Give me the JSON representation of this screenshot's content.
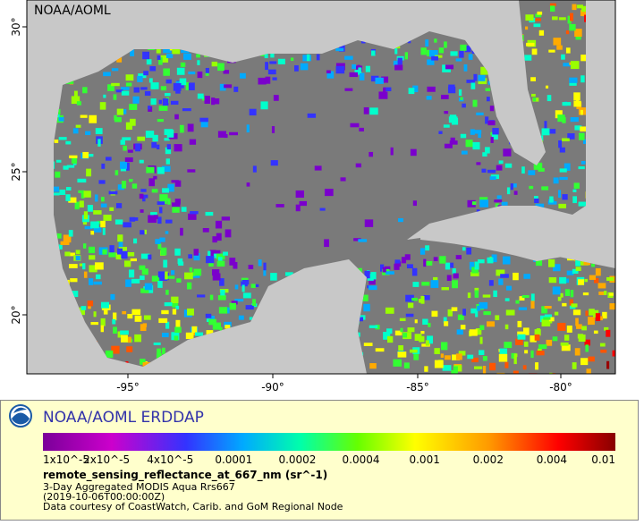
{
  "map": {
    "credit": "NOAA/AOML",
    "lon_labels": [
      "-95°",
      "-90°",
      "-85°",
      "-80°"
    ],
    "lat_labels": [
      "30°",
      "25°",
      "20°"
    ]
  },
  "legend": {
    "title": "NOAA/AOML ERDDAP",
    "colorbar_labels": [
      "1x10^-5",
      "2x10^-5",
      "4x10^-5",
      "0.0001",
      "0.0002",
      "0.0004",
      "0.001",
      "0.002",
      "0.004",
      "0.01"
    ],
    "variable": "remote_sensing_reflectance_at_667_nm (sr^-1)",
    "lines": [
      "3-Day Aggregated MODIS Aqua Rrs667",
      "(2019-10-06T00:00:00Z)",
      "Data courtesy of CoastWatch, Carib. and GoM Regional Node"
    ]
  }
}
